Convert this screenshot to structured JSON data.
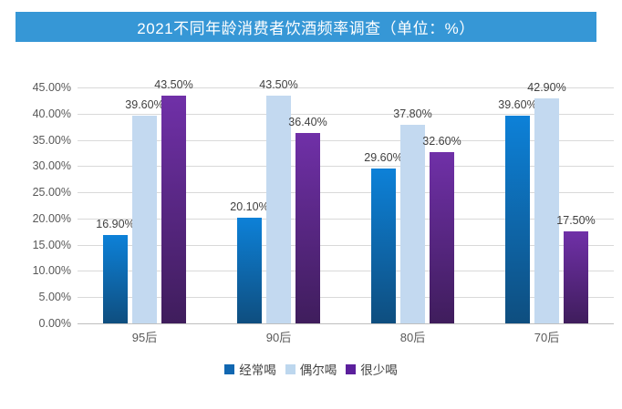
{
  "title": {
    "text": "2021不同年龄消费者饮酒频率调查（单位：%）",
    "bg_color": "#3697d6",
    "text_color": "#ffffff"
  },
  "chart_data": {
    "type": "bar",
    "title": "2021不同年龄消费者饮酒频率调查（单位：%）",
    "categories": [
      "95后",
      "90后",
      "80后",
      "70后"
    ],
    "series": [
      {
        "name": "经常喝",
        "values": [
          16.9,
          20.1,
          29.6,
          39.6
        ],
        "labels": [
          "16.90%",
          "20.10%",
          "29.60%",
          "39.60%"
        ],
        "color_top": "#0d81d8",
        "color_bottom": "#0e4e7f",
        "legend_color": "#1167b1"
      },
      {
        "name": "偶尔喝",
        "values": [
          39.6,
          43.5,
          37.8,
          42.9
        ],
        "labels": [
          "39.60%",
          "43.50%",
          "37.80%",
          "42.90%"
        ],
        "color_top": "#c3d9f0",
        "color_bottom": "#c3d9f0",
        "legend_color": "#bdd7ee"
      },
      {
        "name": "很少喝",
        "values": [
          43.5,
          36.4,
          32.6,
          17.5
        ],
        "labels": [
          "43.50%",
          "36.40%",
          "32.60%",
          "17.50%"
        ],
        "color_top": "#7030a8",
        "color_bottom": "#3f1d5c",
        "legend_color": "#5b1f9c"
      }
    ],
    "xlabel": "",
    "ylabel": "",
    "ylim": [
      0,
      45
    ],
    "y_tick_step": 5,
    "y_tick_labels": [
      "0.00%",
      "5.00%",
      "10.00%",
      "15.00%",
      "20.00%",
      "25.00%",
      "30.00%",
      "35.00%",
      "40.00%",
      "45.00%"
    ],
    "grid": true,
    "legend_position": "bottom"
  },
  "colors": {
    "grid": "#d9d9d9",
    "baseline": "#bfbfbf",
    "axis_text": "#595959",
    "data_label_text": "#404040",
    "legend_text": "#3f3f3f",
    "background": "#ffffff"
  }
}
